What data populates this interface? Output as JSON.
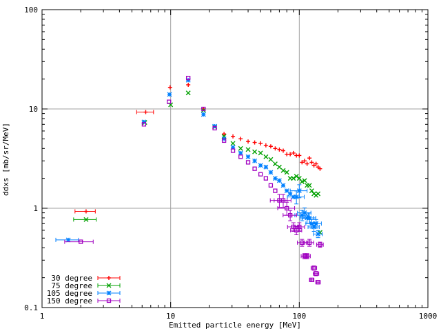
{
  "chart_data": {
    "type": "scatter",
    "xlabel": "Emitted particle energy [MeV]",
    "ylabel": "ddxs [mb/sr/MeV]",
    "xscale": "log",
    "yscale": "log",
    "xlim": [
      1,
      1000
    ],
    "ylim": [
      0.1,
      100
    ],
    "grid": true,
    "legend_position": "bottom-left",
    "x_ticks": [
      "1",
      "10",
      "100",
      "1000"
    ],
    "y_ticks": [
      "0.1",
      "1",
      "10",
      "100"
    ],
    "series": [
      {
        "name": "30 degree",
        "color": "#ff0000",
        "marker": "plus",
        "points": [
          [
            2.2,
            0.93,
            0.18,
            0
          ],
          [
            6.4,
            9.3,
            0.15,
            0
          ],
          [
            9.9,
            16.5,
            0,
            0
          ],
          [
            13.7,
            17.5,
            0,
            0
          ],
          [
            18.0,
            10.0,
            0,
            0
          ],
          [
            26.0,
            5.6,
            0,
            0
          ],
          [
            30.5,
            5.3,
            0,
            0
          ],
          [
            35.0,
            5.0,
            0,
            0
          ],
          [
            40.0,
            4.7,
            0,
            0
          ],
          [
            45.0,
            4.6,
            0,
            0
          ],
          [
            50.0,
            4.5,
            0,
            0
          ],
          [
            55.0,
            4.3,
            0,
            0
          ],
          [
            60.0,
            4.2,
            0,
            0
          ],
          [
            65.0,
            4.0,
            0,
            0
          ],
          [
            70.0,
            3.9,
            0,
            0
          ],
          [
            75.0,
            3.8,
            0,
            0
          ],
          [
            80.0,
            3.5,
            0,
            0
          ],
          [
            85.0,
            3.5,
            0,
            0
          ],
          [
            90.0,
            3.6,
            0,
            0
          ],
          [
            95.0,
            3.4,
            0,
            0
          ],
          [
            100.0,
            3.4,
            0,
            0
          ],
          [
            105.0,
            2.9,
            0,
            0
          ],
          [
            110.0,
            3.0,
            0,
            0
          ],
          [
            115.0,
            2.8,
            0,
            0
          ],
          [
            120.0,
            3.2,
            0,
            0
          ],
          [
            125.0,
            2.9,
            0,
            0
          ],
          [
            130.0,
            2.7,
            0,
            0
          ],
          [
            135.0,
            2.8,
            0,
            0
          ],
          [
            140.0,
            2.6,
            0,
            0
          ],
          [
            145.0,
            2.5,
            0,
            0
          ]
        ]
      },
      {
        "name": "75 degree",
        "color": "#00a000",
        "marker": "cross",
        "points": [
          [
            2.2,
            0.77,
            0.2,
            0
          ],
          [
            6.3,
            7.3,
            0,
            0
          ],
          [
            10.0,
            11.0,
            0,
            0
          ],
          [
            13.7,
            14.5,
            0,
            0
          ],
          [
            18.0,
            9.7,
            0,
            0
          ],
          [
            22.0,
            6.6,
            0,
            0
          ],
          [
            26.0,
            5.3,
            0,
            0
          ],
          [
            30.5,
            4.5,
            0,
            0
          ],
          [
            35.0,
            4.0,
            0,
            0
          ],
          [
            40.0,
            3.9,
            0,
            0
          ],
          [
            45.0,
            3.7,
            0,
            0
          ],
          [
            50.0,
            3.6,
            0,
            0
          ],
          [
            55.0,
            3.3,
            0,
            0
          ],
          [
            60.0,
            3.1,
            0,
            0
          ],
          [
            65.0,
            2.8,
            0,
            0
          ],
          [
            70.0,
            2.6,
            0,
            0
          ],
          [
            75.0,
            2.4,
            0,
            0
          ],
          [
            80.0,
            2.3,
            0,
            0
          ],
          [
            85.0,
            2.0,
            0,
            0
          ],
          [
            90.0,
            2.0,
            0,
            0
          ],
          [
            95.0,
            2.1,
            0,
            0
          ],
          [
            100.0,
            2.0,
            0,
            0
          ],
          [
            105.0,
            1.85,
            0,
            0
          ],
          [
            110.0,
            1.9,
            0,
            0
          ],
          [
            115.0,
            1.7,
            0,
            0
          ],
          [
            120.0,
            1.7,
            0,
            0
          ],
          [
            125.0,
            1.5,
            0,
            0
          ],
          [
            130.0,
            1.4,
            0,
            0
          ],
          [
            135.0,
            1.35,
            0,
            0
          ],
          [
            140.0,
            1.4,
            0,
            0
          ],
          [
            145.0,
            0.57,
            0,
            0
          ]
        ]
      },
      {
        "name": "105 degree",
        "color": "#0080ff",
        "marker": "star",
        "points": [
          [
            1.6,
            0.48,
            0.2,
            0
          ],
          [
            6.2,
            7.4,
            0,
            0
          ],
          [
            9.8,
            14.0,
            0,
            0
          ],
          [
            13.7,
            19.5,
            0,
            0
          ],
          [
            18.0,
            8.8,
            0,
            0
          ],
          [
            22.0,
            6.7,
            0,
            0
          ],
          [
            26.0,
            5.0,
            0,
            0
          ],
          [
            30.5,
            4.1,
            0,
            0
          ],
          [
            35.0,
            3.6,
            0,
            0
          ],
          [
            40.0,
            3.3,
            0,
            0
          ],
          [
            45.0,
            3.0,
            0,
            0
          ],
          [
            50.0,
            2.7,
            0,
            0
          ],
          [
            55.0,
            2.6,
            0,
            0
          ],
          [
            60.0,
            2.3,
            0,
            0
          ],
          [
            65.0,
            2.0,
            0,
            0
          ],
          [
            70.0,
            1.9,
            0,
            0
          ],
          [
            75.0,
            1.7,
            0,
            0
          ],
          [
            80.0,
            1.5,
            0,
            0
          ],
          [
            85.0,
            1.4,
            0,
            0
          ],
          [
            90.0,
            1.3,
            0,
            0
          ],
          [
            95.0,
            1.3,
            0.15,
            0.15
          ],
          [
            100.0,
            1.5,
            0.15,
            0.15
          ],
          [
            105.0,
            0.85,
            0.12,
            0.12
          ],
          [
            110.0,
            0.9,
            0.12,
            0.12
          ],
          [
            115.0,
            0.8,
            0.12,
            0.12
          ],
          [
            120.0,
            0.8,
            0.12,
            0.12
          ],
          [
            125.0,
            0.7,
            0.1,
            0.1
          ],
          [
            130.0,
            0.65,
            0.1,
            0.1
          ],
          [
            135.0,
            0.7,
            0.1,
            0.1
          ],
          [
            140.0,
            0.55,
            0.08,
            0.08
          ]
        ]
      },
      {
        "name": "150 degree",
        "color": "#a000c0",
        "marker": "square",
        "points": [
          [
            2.0,
            0.46,
            0.25,
            0
          ],
          [
            6.2,
            7.0,
            0,
            0
          ],
          [
            9.7,
            11.8,
            0,
            0
          ],
          [
            13.7,
            20.5,
            0,
            0
          ],
          [
            18.0,
            10.0,
            0,
            0
          ],
          [
            22.0,
            6.4,
            0,
            0
          ],
          [
            26.0,
            4.8,
            0,
            0
          ],
          [
            30.5,
            3.8,
            0,
            0
          ],
          [
            35.0,
            3.3,
            0,
            0
          ],
          [
            40.0,
            2.9,
            0,
            0
          ],
          [
            45.0,
            2.5,
            0,
            0
          ],
          [
            50.0,
            2.2,
            0,
            0
          ],
          [
            55.0,
            2.0,
            0,
            0
          ],
          [
            60.0,
            1.7,
            0,
            0
          ],
          [
            65.0,
            1.5,
            0,
            0
          ],
          [
            70.0,
            1.2,
            0.15,
            0.15
          ],
          [
            75.0,
            1.2,
            0.15,
            0.15
          ],
          [
            80.0,
            1.0,
            0.15,
            0.15
          ],
          [
            85.0,
            0.85,
            0.12,
            0.12
          ],
          [
            90.0,
            0.65,
            0.1,
            0.1
          ],
          [
            95.0,
            0.6,
            0.1,
            0.1
          ],
          [
            100.0,
            0.65,
            0.1,
            0.1
          ],
          [
            105.0,
            0.45,
            0.08,
            0.08
          ],
          [
            110.0,
            0.33,
            0.06,
            0.06
          ],
          [
            115.0,
            0.33,
            0.06,
            0.06
          ],
          [
            120.0,
            0.45,
            0.08,
            0.08
          ],
          [
            125.0,
            0.19,
            0.04,
            0.04
          ],
          [
            130.0,
            0.25,
            0.05,
            0.05
          ],
          [
            135.0,
            0.22,
            0.05,
            0.05
          ],
          [
            140.0,
            0.18,
            0.04,
            0.04
          ],
          [
            145.0,
            0.43,
            0.06,
            0.06
          ]
        ]
      }
    ]
  }
}
